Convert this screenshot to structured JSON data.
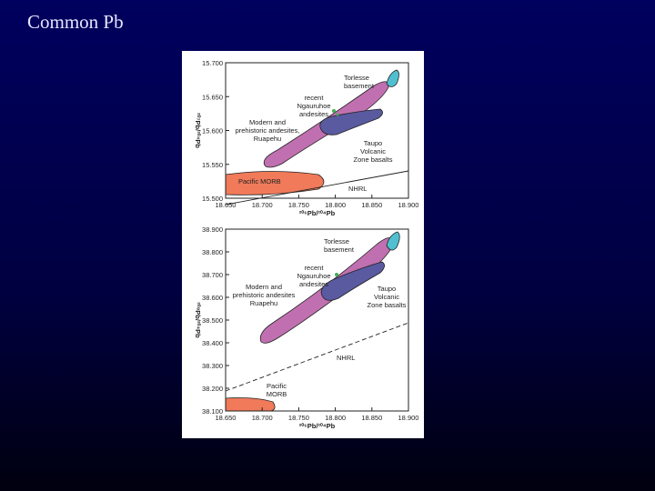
{
  "slide": {
    "title": "Common Pb"
  },
  "panels": [
    {
      "y_label": "²⁰⁷Pb/²⁰⁴Pb",
      "x_label": "²⁰⁶Pb/²⁰⁴Pb",
      "yticks": [
        "15.700",
        "15.650",
        "15.600",
        "15.550",
        "15.500"
      ],
      "xticks": [
        "18.650",
        "18.700",
        "18.750",
        "18.800",
        "18.850",
        "18.900"
      ],
      "annotations": [
        {
          "lines": [
            "Torlesse",
            "basement"
          ]
        },
        {
          "lines": [
            "recent",
            "Ngauruhoe",
            "andesites"
          ]
        },
        {
          "lines": [
            "Modern and",
            "prehistoric andesites,",
            "Ruapehu"
          ]
        },
        {
          "lines": [
            "Taupo",
            "Volcanic",
            "Zone basalts"
          ]
        },
        {
          "lines": [
            "Pacific MORB"
          ]
        },
        {
          "lines": [
            "NHRL"
          ]
        }
      ]
    },
    {
      "y_label": "²⁰⁸Pb/²⁰⁴Pb",
      "x_label": "²⁰⁶Pb/²⁰⁴Pb",
      "yticks": [
        "38.900",
        "38.800",
        "38.700",
        "38.600",
        "38.500",
        "38.400",
        "38.300",
        "38.200",
        "38.100"
      ],
      "xticks": [
        "18.650",
        "18.700",
        "18.750",
        "18.800",
        "18.850",
        "18.900"
      ],
      "annotations": [
        {
          "lines": [
            "Torlesse",
            "basement"
          ]
        },
        {
          "lines": [
            "recent",
            "Ngauruhoe",
            "andesites"
          ]
        },
        {
          "lines": [
            "Modern and",
            "prehistoric andesites",
            "Ruapehu"
          ]
        },
        {
          "lines": [
            "Taupo",
            "Volcanic",
            "Zone basalts"
          ]
        },
        {
          "lines": [
            "Pacific",
            "MORB"
          ]
        },
        {
          "lines": [
            "NHRL"
          ]
        }
      ]
    }
  ]
}
